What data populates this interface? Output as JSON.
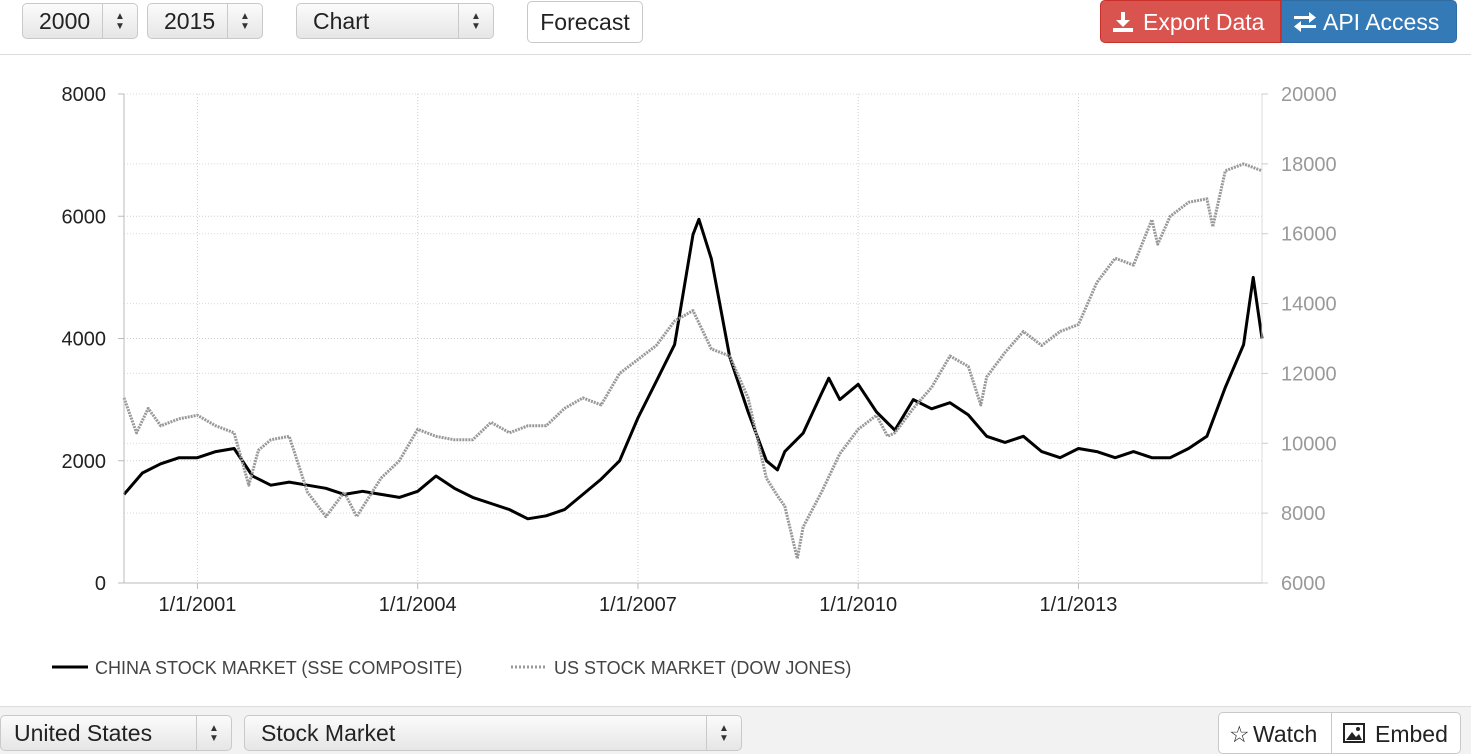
{
  "toolbar": {
    "start_year": "2000",
    "end_year": "2015",
    "view_type": "Chart",
    "forecast_label": "Forecast",
    "export_label": "Export Data",
    "api_label": "API Access",
    "export_icon": "download-icon",
    "api_icon": "exchange-arrows-icon"
  },
  "footer": {
    "country": "United States",
    "indicator": "Stock Market",
    "watch_label": "Watch",
    "embed_label": "Embed",
    "watch_icon": "star-icon",
    "embed_icon": "image-icon"
  },
  "chart_data": {
    "type": "line",
    "x_tick_labels": [
      "1/1/2001",
      "1/1/2004",
      "1/1/2007",
      "1/1/2010",
      "1/1/2013"
    ],
    "x_ticks": [
      2001,
      2004,
      2007,
      2010,
      2013
    ],
    "xlim": [
      2000.0,
      2015.5
    ],
    "y_left_ticks": [
      "0",
      "2000",
      "4000",
      "6000",
      "8000"
    ],
    "ylim_left": [
      0,
      8000
    ],
    "y_right_ticks": [
      "6000",
      "8000",
      "10000",
      "12000",
      "14000",
      "16000",
      "18000",
      "20000"
    ],
    "ylim_right": [
      6000,
      20000
    ],
    "grid": true,
    "legend_position": "bottom-left",
    "series": [
      {
        "name": "CHINA STOCK MARKET (SSE COMPOSITE)",
        "axis": "left",
        "color": "#000000",
        "style": "solid",
        "x": [
          2000.0,
          2000.25,
          2000.5,
          2000.75,
          2001.0,
          2001.25,
          2001.5,
          2001.75,
          2002.0,
          2002.25,
          2002.5,
          2002.75,
          2003.0,
          2003.25,
          2003.5,
          2003.75,
          2004.0,
          2004.25,
          2004.5,
          2004.75,
          2005.0,
          2005.25,
          2005.5,
          2005.75,
          2006.0,
          2006.25,
          2006.5,
          2006.75,
          2007.0,
          2007.25,
          2007.5,
          2007.75,
          2007.83,
          2008.0,
          2008.25,
          2008.5,
          2008.75,
          2008.9,
          2009.0,
          2009.25,
          2009.5,
          2009.6,
          2009.75,
          2010.0,
          2010.25,
          2010.5,
          2010.75,
          2011.0,
          2011.25,
          2011.5,
          2011.75,
          2012.0,
          2012.25,
          2012.5,
          2012.75,
          2013.0,
          2013.25,
          2013.5,
          2013.75,
          2014.0,
          2014.25,
          2014.5,
          2014.75,
          2015.0,
          2015.25,
          2015.38,
          2015.5
        ],
        "y": [
          1450,
          1800,
          1950,
          2050,
          2050,
          2150,
          2200,
          1750,
          1600,
          1650,
          1600,
          1550,
          1450,
          1500,
          1450,
          1400,
          1500,
          1750,
          1550,
          1400,
          1300,
          1200,
          1050,
          1100,
          1200,
          1450,
          1700,
          2000,
          2700,
          3300,
          3900,
          5700,
          5950,
          5300,
          3700,
          2800,
          2000,
          1850,
          2150,
          2450,
          3100,
          3350,
          3000,
          3250,
          2800,
          2500,
          3000,
          2850,
          2950,
          2750,
          2400,
          2300,
          2400,
          2150,
          2050,
          2200,
          2150,
          2050,
          2150,
          2050,
          2050,
          2200,
          2400,
          3200,
          3900,
          5000,
          4000
        ]
      },
      {
        "name": "US STOCK MARKET (DOW JONES)",
        "axis": "right",
        "color": "#999999",
        "style": "dotted",
        "x": [
          2000.0,
          2000.17,
          2000.33,
          2000.5,
          2000.75,
          2001.0,
          2001.25,
          2001.5,
          2001.7,
          2001.83,
          2002.0,
          2002.25,
          2002.5,
          2002.75,
          2003.0,
          2003.17,
          2003.5,
          2003.75,
          2004.0,
          2004.25,
          2004.5,
          2004.75,
          2005.0,
          2005.25,
          2005.5,
          2005.75,
          2006.0,
          2006.25,
          2006.5,
          2006.75,
          2007.0,
          2007.25,
          2007.5,
          2007.75,
          2008.0,
          2008.25,
          2008.5,
          2008.75,
          2008.9,
          2009.0,
          2009.17,
          2009.25,
          2009.5,
          2009.75,
          2010.0,
          2010.25,
          2010.4,
          2010.5,
          2010.75,
          2011.0,
          2011.25,
          2011.5,
          2011.67,
          2011.75,
          2012.0,
          2012.25,
          2012.5,
          2012.75,
          2013.0,
          2013.25,
          2013.5,
          2013.75,
          2014.0,
          2014.08,
          2014.25,
          2014.5,
          2014.75,
          2014.83,
          2015.0,
          2015.25,
          2015.5
        ],
        "y": [
          11300,
          10300,
          11000,
          10500,
          10700,
          10800,
          10500,
          10300,
          8800,
          9800,
          10100,
          10200,
          8600,
          7900,
          8600,
          7900,
          9000,
          9500,
          10400,
          10200,
          10100,
          10100,
          10600,
          10300,
          10500,
          10500,
          11000,
          11300,
          11100,
          12000,
          12400,
          12800,
          13500,
          13800,
          12700,
          12500,
          11300,
          9000,
          8500,
          8200,
          6700,
          7600,
          8600,
          9700,
          10400,
          10800,
          10200,
          10300,
          11000,
          11600,
          12500,
          12200,
          11100,
          11900,
          12600,
          13200,
          12800,
          13200,
          13400,
          14600,
          15300,
          15100,
          16400,
          15700,
          16500,
          16900,
          17000,
          16200,
          17800,
          18000,
          17800
        ]
      }
    ]
  }
}
